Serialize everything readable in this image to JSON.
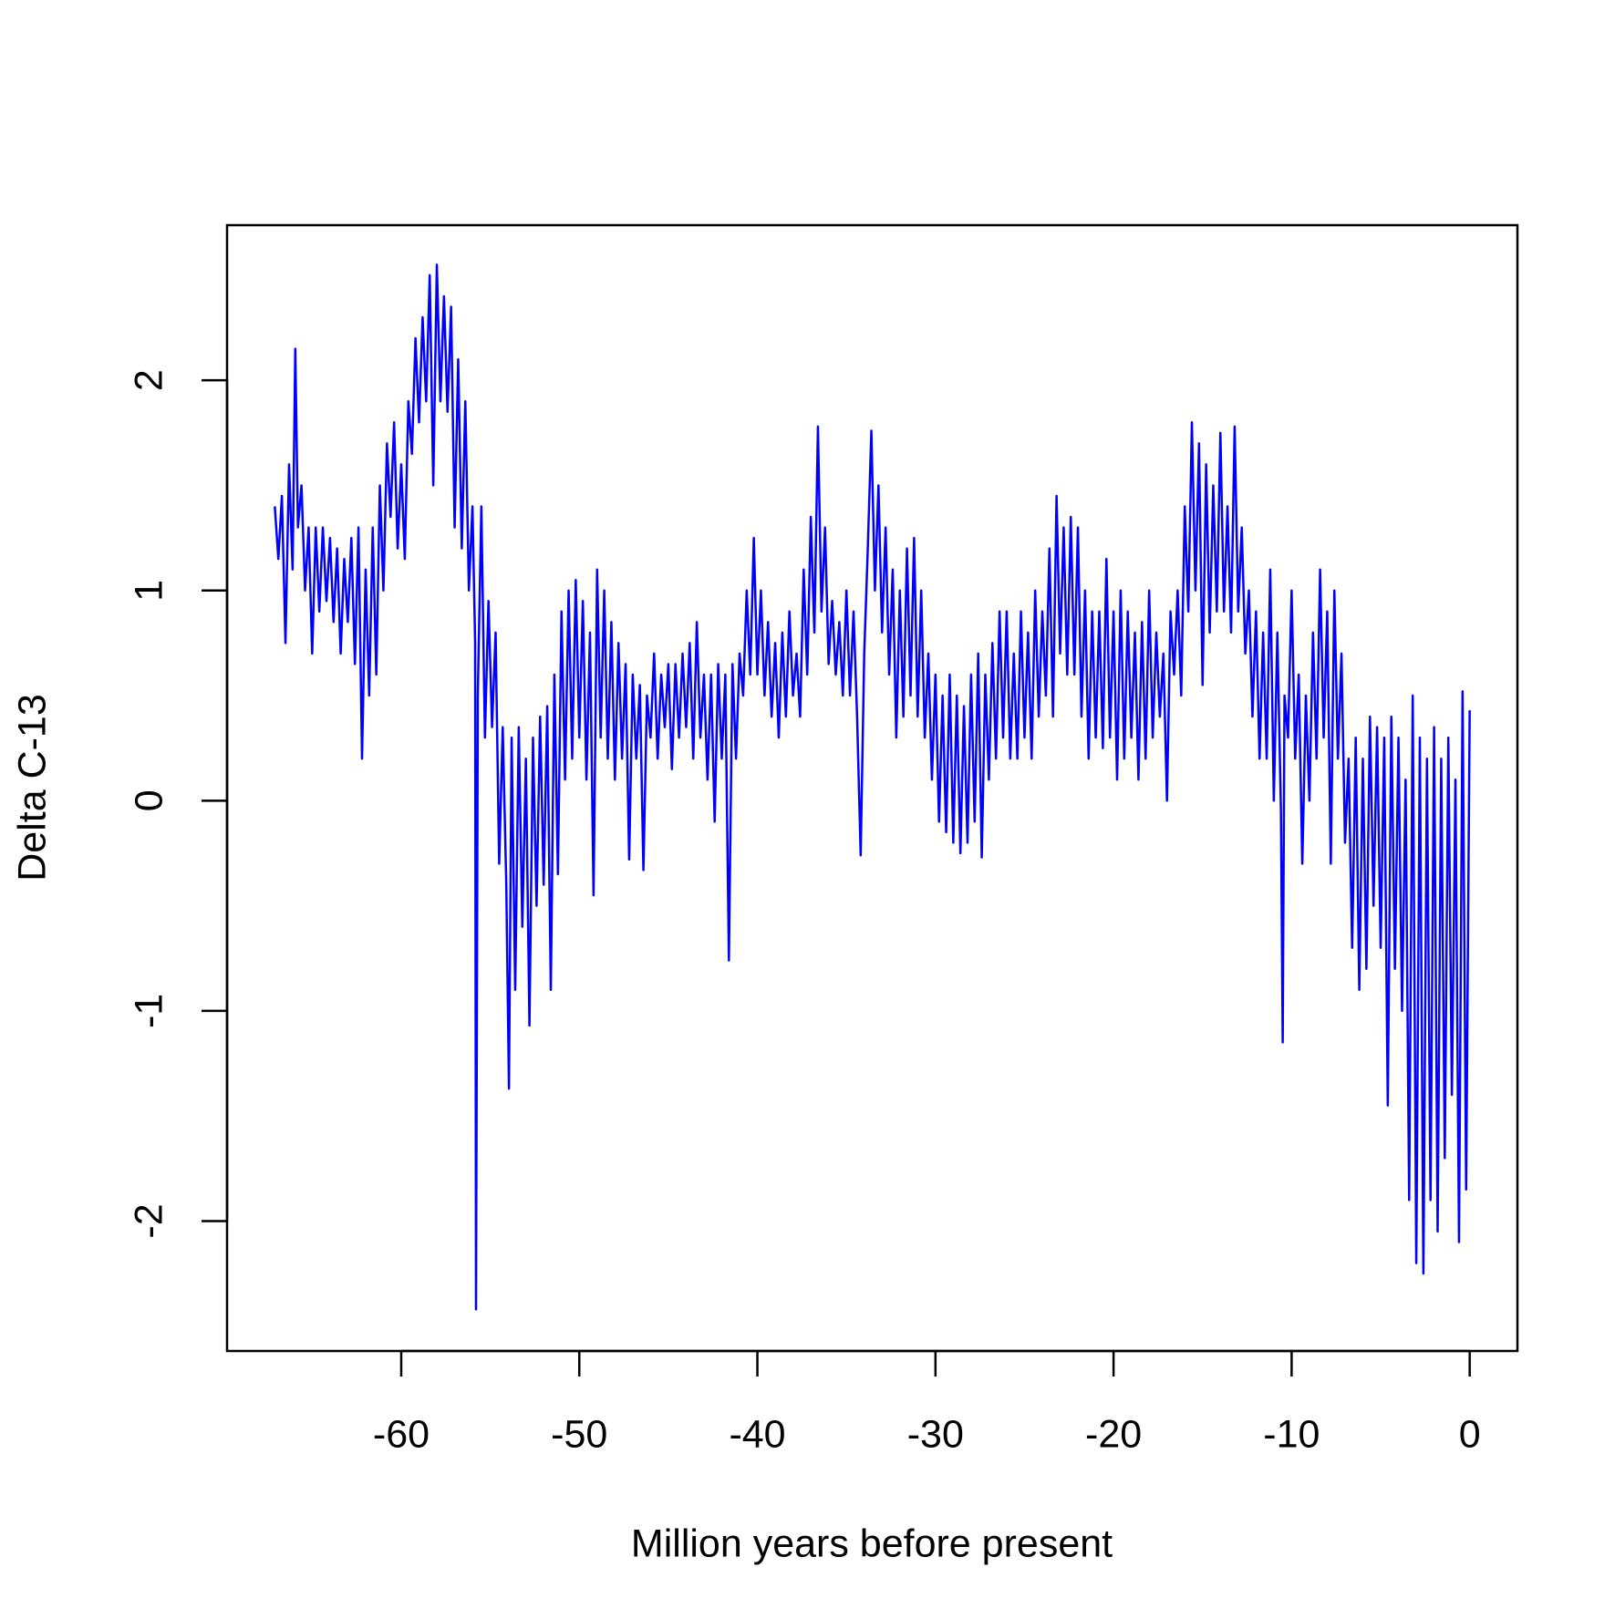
{
  "chart_data": {
    "type": "line",
    "x_label": "Million years before present",
    "y_label": "Delta C-13",
    "color": "#0000ff",
    "xlim": [
      -69.78,
      2.68
    ],
    "ylim": [
      -2.618,
      2.738
    ],
    "xticks": [
      -60,
      -50,
      -40,
      -30,
      -20,
      -10,
      0
    ],
    "yticks": [
      -2,
      -1,
      0,
      1,
      2
    ],
    "x": [
      -67.1,
      -66.9,
      -66.7,
      -66.5,
      -66.3,
      -66.1,
      -65.95,
      -65.8,
      -65.6,
      -65.4,
      -65.2,
      -65.0,
      -64.8,
      -64.6,
      -64.4,
      -64.2,
      -64.0,
      -63.8,
      -63.6,
      -63.4,
      -63.2,
      -63.0,
      -62.8,
      -62.6,
      -62.4,
      -62.2,
      -62.0,
      -61.8,
      -61.6,
      -61.4,
      -61.2,
      -61.0,
      -60.8,
      -60.6,
      -60.4,
      -60.2,
      -60.0,
      -59.8,
      -59.6,
      -59.4,
      -59.2,
      -59.0,
      -58.8,
      -58.6,
      -58.4,
      -58.2,
      -58.0,
      -57.8,
      -57.6,
      -57.4,
      -57.2,
      -57.0,
      -56.8,
      -56.6,
      -56.4,
      -56.2,
      -56.0,
      -55.85,
      -55.8,
      -55.7,
      -55.5,
      -55.3,
      -55.1,
      -54.9,
      -54.7,
      -54.5,
      -54.3,
      -54.1,
      -53.95,
      -53.8,
      -53.6,
      -53.4,
      -53.2,
      -53.0,
      -52.8,
      -52.6,
      -52.4,
      -52.2,
      -52.0,
      -51.8,
      -51.6,
      -51.4,
      -51.2,
      -51.0,
      -50.8,
      -50.6,
      -50.4,
      -50.2,
      -50.0,
      -49.8,
      -49.6,
      -49.4,
      -49.2,
      -49.0,
      -48.8,
      -48.6,
      -48.4,
      -48.2,
      -48.0,
      -47.8,
      -47.6,
      -47.4,
      -47.2,
      -47.0,
      -46.8,
      -46.6,
      -46.4,
      -46.2,
      -46.0,
      -45.8,
      -45.6,
      -45.4,
      -45.2,
      -45.0,
      -44.8,
      -44.6,
      -44.4,
      -44.2,
      -44.0,
      -43.8,
      -43.6,
      -43.4,
      -43.2,
      -43.0,
      -42.8,
      -42.6,
      -42.4,
      -42.2,
      -42.0,
      -41.8,
      -41.6,
      -41.4,
      -41.2,
      -41.0,
      -40.8,
      -40.6,
      -40.4,
      -40.2,
      -40.0,
      -39.8,
      -39.6,
      -39.4,
      -39.2,
      -39.0,
      -38.8,
      -38.6,
      -38.4,
      -38.2,
      -38.0,
      -37.8,
      -37.6,
      -37.4,
      -37.2,
      -37.0,
      -36.8,
      -36.6,
      -36.4,
      -36.2,
      -36.0,
      -35.8,
      -35.6,
      -35.4,
      -35.2,
      -35.0,
      -34.8,
      -34.6,
      -34.4,
      -34.2,
      -34.0,
      -33.8,
      -33.6,
      -33.4,
      -33.2,
      -33.0,
      -32.8,
      -32.6,
      -32.4,
      -32.2,
      -32.0,
      -31.8,
      -31.6,
      -31.4,
      -31.2,
      -31.0,
      -30.8,
      -30.6,
      -30.4,
      -30.2,
      -30.0,
      -29.8,
      -29.6,
      -29.4,
      -29.2,
      -29.0,
      -28.8,
      -28.6,
      -28.4,
      -28.2,
      -28.0,
      -27.8,
      -27.6,
      -27.4,
      -27.2,
      -27.0,
      -26.8,
      -26.6,
      -26.4,
      -26.2,
      -26.0,
      -25.8,
      -25.6,
      -25.4,
      -25.2,
      -25.0,
      -24.8,
      -24.6,
      -24.4,
      -24.2,
      -24.0,
      -23.8,
      -23.6,
      -23.4,
      -23.2,
      -23.0,
      -22.8,
      -22.6,
      -22.4,
      -22.2,
      -22.0,
      -21.8,
      -21.6,
      -21.4,
      -21.2,
      -21.0,
      -20.8,
      -20.6,
      -20.4,
      -20.2,
      -20.0,
      -19.8,
      -19.6,
      -19.4,
      -19.2,
      -19.0,
      -18.8,
      -18.6,
      -18.4,
      -18.2,
      -18.0,
      -17.8,
      -17.6,
      -17.4,
      -17.2,
      -17.0,
      -16.8,
      -16.6,
      -16.4,
      -16.2,
      -16.0,
      -15.8,
      -15.6,
      -15.4,
      -15.2,
      -15.0,
      -14.8,
      -14.6,
      -14.4,
      -14.2,
      -14.0,
      -13.8,
      -13.6,
      -13.4,
      -13.2,
      -13.0,
      -12.8,
      -12.6,
      -12.4,
      -12.2,
      -12.0,
      -11.8,
      -11.6,
      -11.4,
      -11.2,
      -11.0,
      -10.8,
      -10.6,
      -10.5,
      -10.4,
      -10.2,
      -10.0,
      -9.8,
      -9.6,
      -9.4,
      -9.2,
      -9.0,
      -8.8,
      -8.6,
      -8.4,
      -8.2,
      -8.0,
      -7.8,
      -7.6,
      -7.4,
      -7.2,
      -7.0,
      -6.8,
      -6.6,
      -6.4,
      -6.2,
      -6.0,
      -5.8,
      -5.6,
      -5.4,
      -5.2,
      -5.0,
      -4.8,
      -4.6,
      -4.4,
      -4.2,
      -4.0,
      -3.8,
      -3.6,
      -3.4,
      -3.2,
      -3.0,
      -2.8,
      -2.6,
      -2.4,
      -2.2,
      -2.0,
      -1.8,
      -1.6,
      -1.4,
      -1.2,
      -1.0,
      -0.8,
      -0.6,
      -0.4,
      -0.2,
      0.0
    ],
    "values": [
      1.4,
      1.15,
      1.45,
      0.75,
      1.6,
      1.1,
      2.15,
      1.3,
      1.5,
      1.0,
      1.3,
      0.7,
      1.3,
      0.9,
      1.3,
      0.95,
      1.25,
      0.85,
      1.2,
      0.7,
      1.15,
      0.85,
      1.25,
      0.65,
      1.3,
      0.2,
      1.1,
      0.5,
      1.3,
      0.6,
      1.5,
      1.0,
      1.7,
      1.35,
      1.8,
      1.2,
      1.6,
      1.15,
      1.9,
      1.65,
      2.2,
      1.8,
      2.3,
      1.9,
      2.5,
      1.5,
      2.55,
      1.9,
      2.4,
      1.85,
      2.35,
      1.3,
      2.1,
      1.2,
      1.9,
      1.0,
      1.4,
      0.75,
      -2.42,
      0.5,
      1.4,
      0.3,
      0.95,
      0.35,
      0.8,
      -0.3,
      0.35,
      -0.4,
      -1.37,
      0.3,
      -0.9,
      0.35,
      -0.6,
      0.2,
      -1.07,
      0.3,
      -0.5,
      0.4,
      -0.4,
      0.45,
      -0.9,
      0.6,
      -0.35,
      0.9,
      0.1,
      1.0,
      0.2,
      1.05,
      0.3,
      0.95,
      0.1,
      0.8,
      -0.45,
      1.1,
      0.3,
      1.0,
      0.2,
      0.85,
      0.1,
      0.75,
      0.2,
      0.65,
      -0.28,
      0.6,
      0.2,
      0.55,
      -0.33,
      0.5,
      0.3,
      0.7,
      0.2,
      0.6,
      0.35,
      0.65,
      0.15,
      0.65,
      0.3,
      0.7,
      0.35,
      0.75,
      0.2,
      0.85,
      0.3,
      0.6,
      0.1,
      0.6,
      -0.1,
      0.65,
      0.2,
      0.6,
      -0.76,
      0.65,
      0.2,
      0.7,
      0.5,
      1.0,
      0.6,
      1.25,
      0.6,
      1.0,
      0.5,
      0.85,
      0.4,
      0.75,
      0.3,
      0.8,
      0.4,
      0.9,
      0.5,
      0.7,
      0.4,
      1.1,
      0.6,
      1.35,
      0.8,
      1.78,
      0.9,
      1.3,
      0.65,
      0.95,
      0.6,
      0.85,
      0.5,
      1.0,
      0.5,
      0.9,
      0.4,
      -0.26,
      0.7,
      1.2,
      1.76,
      1.0,
      1.5,
      0.8,
      1.3,
      0.6,
      1.1,
      0.3,
      1.0,
      0.4,
      1.2,
      0.5,
      1.25,
      0.4,
      1.0,
      0.3,
      0.7,
      0.1,
      0.6,
      -0.1,
      0.5,
      -0.15,
      0.6,
      -0.2,
      0.5,
      -0.25,
      0.45,
      -0.2,
      0.6,
      -0.1,
      0.7,
      -0.27,
      0.6,
      0.1,
      0.75,
      0.2,
      0.9,
      0.3,
      0.9,
      0.2,
      0.7,
      0.2,
      0.9,
      0.3,
      0.8,
      0.2,
      1.0,
      0.4,
      0.9,
      0.5,
      1.2,
      0.4,
      1.45,
      0.7,
      1.3,
      0.6,
      1.35,
      0.6,
      1.3,
      0.4,
      1.0,
      0.2,
      0.9,
      0.3,
      0.9,
      0.25,
      1.15,
      0.3,
      0.9,
      0.1,
      1.0,
      0.2,
      0.9,
      0.3,
      0.8,
      0.1,
      0.85,
      0.2,
      1.0,
      0.3,
      0.8,
      0.4,
      0.7,
      0.0,
      0.9,
      0.6,
      1.0,
      0.5,
      1.4,
      0.9,
      1.8,
      1.0,
      1.7,
      0.55,
      1.6,
      0.8,
      1.5,
      0.9,
      1.75,
      0.9,
      1.4,
      0.8,
      1.78,
      0.9,
      1.3,
      0.7,
      1.0,
      0.4,
      0.9,
      0.2,
      0.8,
      0.2,
      1.1,
      0.0,
      0.8,
      -0.05,
      -1.15,
      0.5,
      0.3,
      1.0,
      0.2,
      0.6,
      -0.3,
      0.5,
      0.0,
      0.8,
      0.2,
      1.1,
      0.3,
      0.9,
      -0.3,
      1.0,
      0.2,
      0.7,
      -0.2,
      0.2,
      -0.7,
      0.3,
      -0.9,
      0.2,
      -0.8,
      0.4,
      -0.5,
      0.35,
      -0.7,
      0.3,
      -1.45,
      0.4,
      -0.8,
      0.3,
      -1.0,
      0.1,
      -1.9,
      0.5,
      -2.2,
      0.3,
      -2.25,
      0.2,
      -1.9,
      0.35,
      -2.05,
      0.2,
      -1.7,
      0.3,
      -1.4,
      0.1,
      -2.1,
      0.52,
      -1.85,
      0.43
    ]
  }
}
